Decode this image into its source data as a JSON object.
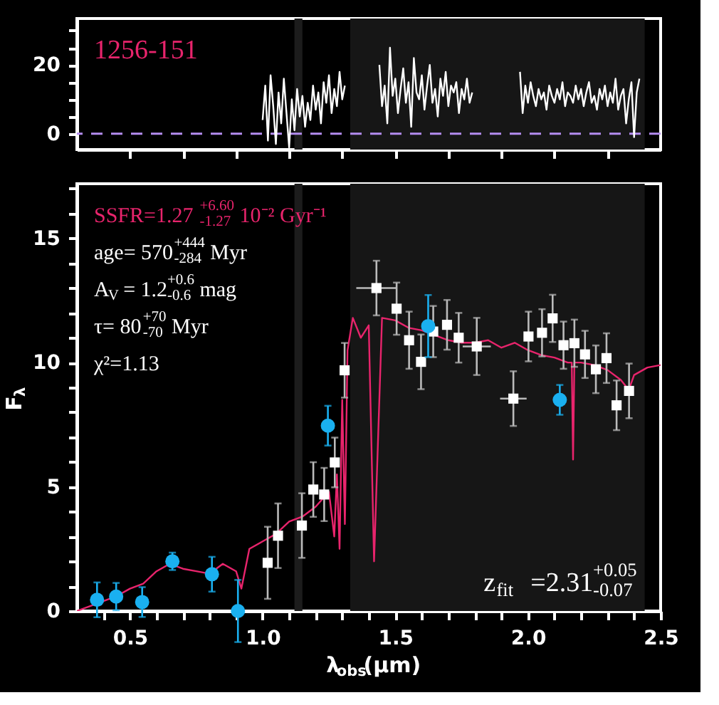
{
  "chart_data": [
    {
      "type": "line",
      "xlim": [
        0.3,
        2.5
      ],
      "ylim": [
        -4.6,
        33.5
      ],
      "xticks": [
        {
          "value": 0.5,
          "label": null
        },
        {
          "value": 0.7,
          "label": null
        },
        {
          "value": 0.9,
          "label": null
        },
        {
          "value": 1.1,
          "label": null
        },
        {
          "value": 1.3,
          "label": null
        },
        {
          "value": 1.5,
          "label": null
        },
        {
          "value": 1.7,
          "label": null
        },
        {
          "value": 1.9,
          "label": null
        },
        {
          "value": 2.1,
          "label": null
        },
        {
          "value": 2.3,
          "label": null
        }
      ],
      "yticks": [
        0,
        {
          "value": 5,
          "label": null
        },
        {
          "value": 10,
          "label": null
        },
        {
          "value": 15,
          "label": null
        },
        20,
        {
          "value": 25,
          "label": null
        },
        {
          "value": 30,
          "label": null
        }
      ],
      "tick_labels": "y",
      "grid": false,
      "annotations": [
        "1256-151"
      ],
      "bands": [
        {
          "axis": "x",
          "from": 1.12,
          "to": 1.15,
          "color": "#1c1c1c"
        },
        {
          "axis": "x",
          "from": 1.33,
          "to": 2.44,
          "color": "#161616"
        }
      ],
      "ref_lines": [
        {
          "axis": "y",
          "value": 0,
          "color": "#b48cf0",
          "line_style": "dashed"
        }
      ],
      "series": [
        {
          "color": "#ffffff",
          "x": [
            1.0,
            1.01,
            1.02,
            1.03,
            1.04,
            1.05,
            1.06,
            1.07,
            1.08,
            1.09,
            1.1,
            1.11,
            1.12,
            1.13,
            1.14,
            1.15,
            1.16,
            1.17,
            1.18,
            1.19,
            1.2,
            1.21,
            1.22,
            1.23,
            1.24,
            1.25,
            1.26,
            1.27,
            1.28,
            1.29,
            1.3,
            1.31,
            1.32,
            1.44,
            1.45,
            1.46,
            1.47,
            1.48,
            1.49,
            1.5,
            1.51,
            1.52,
            1.53,
            1.54,
            1.55,
            1.56,
            1.57,
            1.58,
            1.59,
            1.6,
            1.61,
            1.62,
            1.63,
            1.64,
            1.65,
            1.66,
            1.67,
            1.68,
            1.69,
            1.7,
            1.71,
            1.72,
            1.73,
            1.74,
            1.75,
            1.76,
            1.77,
            1.78,
            1.79,
            1.96,
            1.97,
            1.98,
            1.99,
            2.0,
            2.01,
            2.02,
            2.03,
            2.04,
            2.05,
            2.06,
            2.07,
            2.08,
            2.09,
            2.1,
            2.11,
            2.12,
            2.13,
            2.14,
            2.15,
            2.16,
            2.17,
            2.18,
            2.19,
            2.2,
            2.21,
            2.22,
            2.23,
            2.24,
            2.25,
            2.26,
            2.27,
            2.28,
            2.29,
            2.3,
            2.31,
            2.32,
            2.33,
            2.34,
            2.35,
            2.36,
            2.37,
            2.38,
            2.39,
            2.4,
            2.41,
            2.42
          ],
          "values": [
            4,
            14,
            -2,
            17,
            8,
            -3,
            12,
            3,
            16,
            6,
            -4,
            10,
            1,
            13,
            5,
            11,
            2,
            9,
            4,
            14,
            7,
            12,
            3,
            15,
            9,
            17,
            6,
            13,
            8,
            18,
            10,
            14,
            null,
            20,
            8,
            14,
            3,
            25,
            11,
            16,
            6,
            13,
            19,
            9,
            15,
            2,
            22,
            12,
            10,
            17,
            7,
            14,
            20,
            9,
            13,
            5,
            16,
            11,
            18,
            8,
            14,
            12,
            15,
            6,
            13,
            10,
            16,
            9,
            12,
            null,
            18,
            6,
            14,
            9,
            15,
            11,
            8,
            13,
            10,
            12,
            7,
            14,
            11,
            9,
            13,
            10,
            15,
            8,
            12,
            11,
            9,
            14,
            10,
            13,
            8,
            12,
            15,
            9,
            11,
            7,
            13,
            10,
            14,
            8,
            12,
            9,
            16,
            7,
            11,
            13,
            3,
            10,
            15,
            -1,
            12,
            16
          ]
        }
      ]
    },
    {
      "type": "line",
      "xlim": [
        0.3,
        2.5
      ],
      "ylim": [
        0,
        17.2
      ],
      "xlabel": "λ$_{obs}$(μm)",
      "ylabel": "F$_{λ}$",
      "xticks": [
        {
          "value": 0.4,
          "label": null
        },
        {
          "value": 0.5,
          "label": "0.5"
        },
        {
          "value": 0.6,
          "label": null
        },
        {
          "value": 0.7,
          "label": null
        },
        {
          "value": 0.8,
          "label": null
        },
        {
          "value": 0.9,
          "label": null
        },
        {
          "value": 1.0,
          "label": "1.0"
        },
        {
          "value": 1.1,
          "label": null
        },
        {
          "value": 1.2,
          "label": null
        },
        {
          "value": 1.3,
          "label": null
        },
        {
          "value": 1.4,
          "label": null
        },
        {
          "value": 1.5,
          "label": "1.5"
        },
        {
          "value": 1.6,
          "label": null
        },
        {
          "value": 1.7,
          "label": null
        },
        {
          "value": 1.8,
          "label": null
        },
        {
          "value": 1.9,
          "label": null
        },
        {
          "value": 2.0,
          "label": "2.0"
        },
        {
          "value": 2.1,
          "label": null
        },
        {
          "value": 2.2,
          "label": null
        },
        {
          "value": 2.3,
          "label": null
        },
        {
          "value": 2.4,
          "label": null
        },
        {
          "value": 2.5,
          "label": "2.5"
        }
      ],
      "yticks": [
        0,
        {
          "value": 1,
          "label": null
        },
        {
          "value": 2,
          "label": null
        },
        {
          "value": 3,
          "label": null
        },
        {
          "value": 4,
          "label": null
        },
        5,
        {
          "value": 6,
          "label": null
        },
        {
          "value": 7,
          "label": null
        },
        {
          "value": 8,
          "label": null
        },
        {
          "value": 9,
          "label": null
        },
        10,
        {
          "value": 11,
          "label": null
        },
        {
          "value": 12,
          "label": null
        },
        {
          "value": 13,
          "label": null
        },
        {
          "value": 14,
          "label": null
        },
        15,
        {
          "value": 16,
          "label": null
        },
        {
          "value": 17,
          "label": null
        }
      ],
      "grid": false,
      "annotations": [
        "SSFR=1.27$^{+6.60}$$_{-1.27}$ 10⁻² Gyr⁻¹",
        "age= 570$^{+444}$$_{-284}$ Myr",
        "A$_{V}$= 1.2$^{+0.6}$$_{-0.6}$ mag",
        "τ= 80$^{+70}$$_{-70}$ Myr",
        "χ²=1.13",
        "z$_{fit}$=2.31$^{+0.05}$$_{-0.07}$"
      ],
      "bands": [
        {
          "axis": "x",
          "from": 1.12,
          "to": 1.15,
          "color": "#1c1c1c"
        },
        {
          "axis": "x",
          "from": 1.33,
          "to": 2.44,
          "color": "#161616"
        }
      ],
      "series": [
        {
          "color": "#e8246c",
          "marker": "none",
          "x": [
            0.3,
            0.35,
            0.4,
            0.45,
            0.5,
            0.55,
            0.6,
            0.65,
            0.7,
            0.75,
            0.8,
            0.85,
            0.9,
            0.92,
            0.95,
            1.0,
            1.05,
            1.1,
            1.15,
            1.2,
            1.25,
            1.27,
            1.28,
            1.29,
            1.3,
            1.31,
            1.32,
            1.34,
            1.37,
            1.4,
            1.42,
            1.45,
            1.5,
            1.55,
            1.6,
            1.65,
            1.7,
            1.75,
            1.8,
            1.85,
            1.9,
            1.95,
            2.0,
            2.05,
            2.1,
            2.15,
            2.165,
            2.17,
            2.175,
            2.2,
            2.25,
            2.3,
            2.35,
            2.38,
            2.4,
            2.45,
            2.5
          ],
          "values": [
            0,
            0.2,
            0.4,
            0.6,
            0.9,
            1.1,
            1.6,
            1.9,
            1.7,
            1.6,
            1.5,
            1.9,
            1.6,
            0.9,
            2.5,
            2.8,
            3.1,
            3.6,
            3.8,
            4.2,
            4.8,
            3.0,
            5.5,
            2.5,
            8.5,
            3.5,
            10.5,
            11.8,
            11.0,
            11.5,
            2.0,
            11.8,
            11.7,
            11.4,
            11.3,
            11.1,
            10.9,
            10.8,
            10.8,
            10.9,
            10.6,
            10.8,
            10.5,
            10.3,
            10.2,
            10.0,
            10.0,
            6.1,
            10.0,
            10.0,
            9.9,
            9.7,
            9.3,
            8.9,
            9.5,
            9.8,
            9.9
          ]
        },
        {
          "type": "scatter",
          "color": "#ffffff",
          "marker": "square",
          "x": [
            1.019,
            1.058,
            1.148,
            1.191,
            1.232,
            1.272,
            1.309,
            1.429,
            1.505,
            1.552,
            1.597,
            1.643,
            1.695,
            1.739,
            1.807,
            1.945,
            2.002,
            2.053,
            2.093,
            2.134,
            2.175,
            2.215,
            2.256,
            2.296,
            2.334,
            2.381
          ],
          "values": [
            1.94,
            3.03,
            3.44,
            4.89,
            4.69,
            5.98,
            9.69,
            13.0,
            12.17,
            10.9,
            10.03,
            11.25,
            11.52,
            11.0,
            10.65,
            8.55,
            11.05,
            11.2,
            11.78,
            10.7,
            10.78,
            10.33,
            9.73,
            10.18,
            8.28,
            8.86
          ],
          "errors": [
            1.45,
            1.3,
            1.3,
            1.1,
            1.07,
            1.0,
            1.1,
            1.1,
            1.05,
            1.15,
            1.1,
            1.03,
            1.0,
            1.0,
            1.15,
            1.1,
            1.0,
            0.95,
            0.95,
            0.95,
            0.95,
            0.95,
            0.96,
            1.0,
            1.0,
            1.1
          ],
          "xerrors": [
            null,
            null,
            null,
            null,
            null,
            null,
            null,
            0.076,
            null,
            null,
            null,
            null,
            null,
            null,
            0.053,
            0.05,
            null,
            null,
            null,
            null,
            null,
            null,
            null,
            null,
            null,
            null
          ]
        },
        {
          "type": "scatter",
          "color": "#1ab0f0",
          "marker": "circle",
          "x": [
            0.376,
            0.448,
            0.546,
            0.66,
            0.809,
            0.907,
            1.246,
            1.624,
            2.12
          ],
          "values": [
            0.45,
            0.58,
            0.36,
            2.0,
            1.48,
            0.0,
            7.46,
            11.47,
            8.5
          ],
          "errors": [
            0.7,
            0.55,
            0.6,
            0.35,
            0.7,
            1.25,
            0.8,
            1.25,
            0.6
          ]
        }
      ]
    }
  ]
}
